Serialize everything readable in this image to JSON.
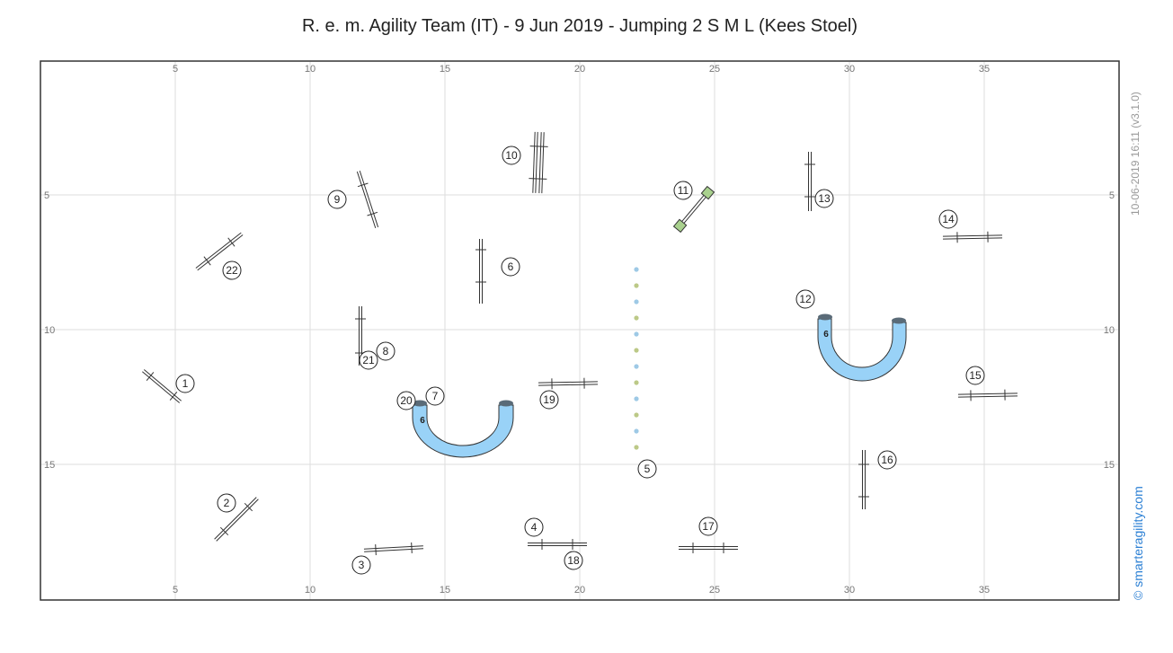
{
  "title": "R. e. m. Agility Team (IT) - 9 Jun 2019 - Jumping 2 S M L (Kees Stoel)",
  "side_info": "10-06-2019 16:11  (v3.1.0)",
  "copyright": "© smarteragility.com",
  "axis": {
    "x_ticks": [
      "5",
      "10",
      "15",
      "20",
      "25",
      "30",
      "35"
    ],
    "y_ticks": [
      "5",
      "10",
      "15"
    ]
  },
  "tunnel_length_label": "6",
  "numbers": [
    "1",
    "2",
    "3",
    "4",
    "5",
    "6",
    "7",
    "8",
    "9",
    "10",
    "11",
    "12",
    "13",
    "14",
    "15",
    "16",
    "17",
    "18",
    "19",
    "20",
    "21",
    "22"
  ],
  "colors": {
    "tunnel_fill": "#99d2f7",
    "tunnel_end": "#5a6b78",
    "weave_blue": "#9ec9e6",
    "weave_green": "#bcc987",
    "seesaw_end": "#a9d18e",
    "grid": "#dddddd",
    "copyright": "#2a7fd4"
  }
}
